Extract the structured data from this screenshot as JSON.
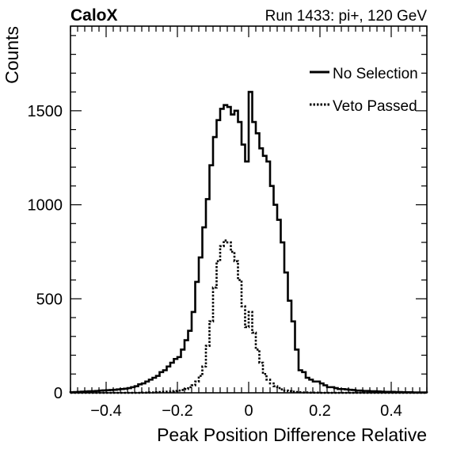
{
  "header": {
    "left_title": "CaloX",
    "right_title": "Run 1433: pi+, 120 GeV"
  },
  "chart_data": {
    "type": "line",
    "xlabel": "Peak Position Difference Relative",
    "ylabel": "Counts",
    "xlim": [
      -0.5,
      0.5
    ],
    "ylim": [
      0,
      1950
    ],
    "x_ticks": [
      -0.4,
      -0.2,
      0,
      0.2,
      0.4
    ],
    "x_tick_labels": [
      "−0.4",
      "−0.2",
      "0",
      "0.2",
      "0.4"
    ],
    "y_ticks": [
      0,
      500,
      1000,
      1500
    ],
    "y_tick_labels": [
      "0",
      "500",
      "1000",
      "1500"
    ],
    "grid": false,
    "legend_position": "top-right",
    "series": [
      {
        "name": "No Selection",
        "style": "solid",
        "color": "#000000",
        "x": [
          -0.5,
          -0.49,
          -0.48,
          -0.47,
          -0.46,
          -0.45,
          -0.44,
          -0.43,
          -0.42,
          -0.41,
          -0.4,
          -0.39,
          -0.38,
          -0.37,
          -0.36,
          -0.35,
          -0.34,
          -0.33,
          -0.32,
          -0.31,
          -0.3,
          -0.29,
          -0.28,
          -0.27,
          -0.26,
          -0.25,
          -0.24,
          -0.23,
          -0.22,
          -0.21,
          -0.2,
          -0.19,
          -0.18,
          -0.17,
          -0.16,
          -0.15,
          -0.14,
          -0.13,
          -0.12,
          -0.11,
          -0.1,
          -0.09,
          -0.08,
          -0.07,
          -0.06,
          -0.05,
          -0.04,
          -0.03,
          -0.02,
          -0.01,
          0.0,
          0.01,
          0.02,
          0.03,
          0.04,
          0.05,
          0.06,
          0.07,
          0.08,
          0.09,
          0.1,
          0.11,
          0.12,
          0.13,
          0.14,
          0.15,
          0.16,
          0.17,
          0.18,
          0.19,
          0.2,
          0.21,
          0.22,
          0.23,
          0.24,
          0.25,
          0.26,
          0.27,
          0.28,
          0.29,
          0.3,
          0.31,
          0.32,
          0.33,
          0.34,
          0.35,
          0.36,
          0.37,
          0.38,
          0.39,
          0.4,
          0.41,
          0.42,
          0.43,
          0.44,
          0.45,
          0.46,
          0.47,
          0.48,
          0.49
        ],
        "values": [
          3,
          4,
          5,
          6,
          7,
          8,
          9,
          10,
          12,
          13,
          14,
          15,
          16,
          18,
          20,
          22,
          25,
          30,
          35,
          45,
          50,
          60,
          70,
          80,
          90,
          110,
          120,
          140,
          160,
          180,
          190,
          230,
          280,
          330,
          430,
          590,
          720,
          880,
          1030,
          1210,
          1360,
          1450,
          1510,
          1530,
          1520,
          1480,
          1500,
          1440,
          1320,
          1230,
          1600,
          1440,
          1380,
          1300,
          1260,
          1230,
          1100,
          1000,
          920,
          800,
          640,
          490,
          380,
          230,
          120,
          110,
          80,
          70,
          60,
          60,
          50,
          40,
          30,
          30,
          25,
          20,
          20,
          18,
          16,
          15,
          12,
          12,
          10,
          10,
          8,
          8,
          7,
          6,
          5,
          5,
          5,
          4,
          4,
          3,
          3,
          3,
          2,
          2,
          2,
          2
        ]
      },
      {
        "name": "Veto Passed",
        "style": "dotted",
        "color": "#000000",
        "x": [
          -0.5,
          -0.49,
          -0.48,
          -0.47,
          -0.46,
          -0.45,
          -0.44,
          -0.43,
          -0.42,
          -0.41,
          -0.4,
          -0.39,
          -0.38,
          -0.37,
          -0.36,
          -0.35,
          -0.34,
          -0.33,
          -0.32,
          -0.31,
          -0.3,
          -0.29,
          -0.28,
          -0.27,
          -0.26,
          -0.25,
          -0.24,
          -0.23,
          -0.22,
          -0.21,
          -0.2,
          -0.19,
          -0.18,
          -0.17,
          -0.16,
          -0.15,
          -0.14,
          -0.13,
          -0.12,
          -0.11,
          -0.1,
          -0.09,
          -0.08,
          -0.07,
          -0.06,
          -0.05,
          -0.04,
          -0.03,
          -0.02,
          -0.01,
          0.0,
          0.01,
          0.02,
          0.03,
          0.04,
          0.05,
          0.06,
          0.07,
          0.08,
          0.09,
          0.1,
          0.11,
          0.12,
          0.13,
          0.14,
          0.15,
          0.16,
          0.17,
          0.18,
          0.19,
          0.2,
          0.21,
          0.22,
          0.23,
          0.24,
          0.25,
          0.26,
          0.27,
          0.28,
          0.29,
          0.3,
          0.31,
          0.32,
          0.33,
          0.34,
          0.35,
          0.36,
          0.37,
          0.38,
          0.39,
          0.4,
          0.41,
          0.42,
          0.43,
          0.44,
          0.45,
          0.46,
          0.47,
          0.48,
          0.49
        ],
        "values": [
          0,
          0,
          0,
          0,
          0,
          0,
          0,
          0,
          0,
          0,
          0,
          0,
          0,
          0,
          0,
          0,
          0,
          0,
          0,
          0,
          1,
          1,
          2,
          2,
          3,
          4,
          5,
          6,
          8,
          10,
          12,
          15,
          20,
          30,
          40,
          60,
          90,
          140,
          250,
          380,
          560,
          700,
          780,
          810,
          800,
          750,
          700,
          600,
          460,
          350,
          430,
          320,
          230,
          160,
          100,
          70,
          50,
          35,
          25,
          18,
          12,
          9,
          6,
          4,
          3,
          2,
          2,
          1,
          1,
          1,
          0,
          0,
          0,
          0,
          0,
          0,
          0,
          0,
          0,
          0,
          0,
          0,
          0,
          0,
          0,
          0,
          0,
          0,
          0,
          0,
          0,
          0,
          0,
          0,
          0,
          0,
          0,
          0,
          0,
          0
        ]
      }
    ]
  }
}
